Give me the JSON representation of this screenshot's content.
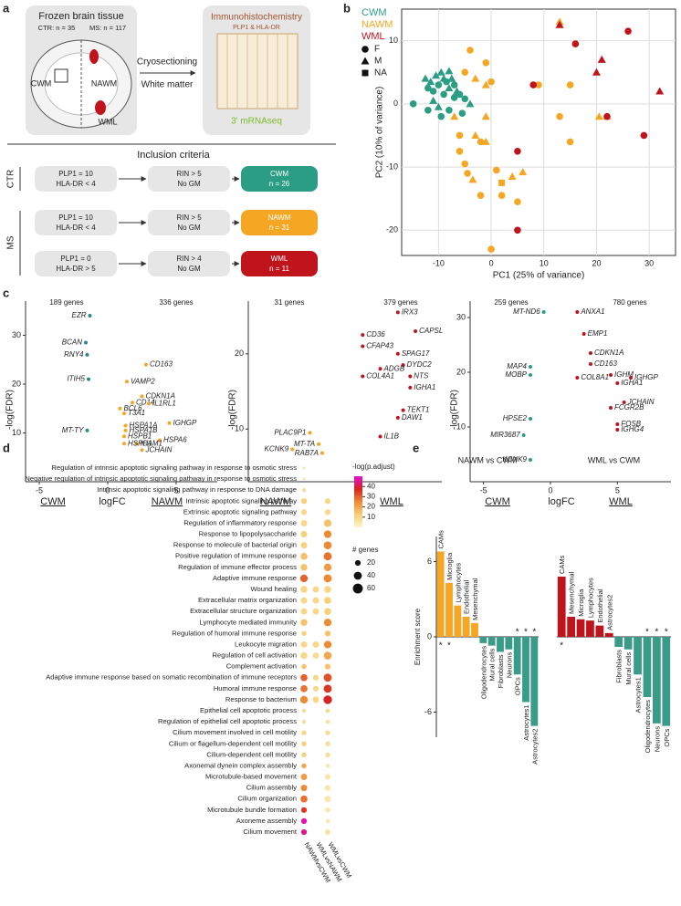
{
  "panel_labels": [
    "a",
    "b",
    "c",
    "d",
    "e"
  ],
  "diagram": {
    "tissue": {
      "title": "Frozen brain tissue",
      "counts": [
        "CTR: n = 35",
        "MS: n = 117"
      ],
      "regions": [
        "CWM",
        "NAWM",
        "WML"
      ]
    },
    "process": [
      "Cryosectioning",
      "White matter"
    ],
    "assay": {
      "title": "Immunohistochemistry",
      "subtitle": "PLP1 & HLA-DR",
      "method": "3' mRNAseq"
    },
    "criteria": {
      "title": "Inclusion criteria",
      "groups": [
        "CTR",
        "MS"
      ],
      "rows": [
        {
          "ihc": [
            "PLP1 = 10",
            "HLA-DR < 4"
          ],
          "rin": [
            "RIN > 5",
            "No GM"
          ],
          "result": [
            "CWM",
            "n = 26"
          ],
          "color": "#2a9d84"
        },
        {
          "ihc": [
            "PLP1 = 10",
            "HLA-DR < 4"
          ],
          "rin": [
            "RIN > 5",
            "No GM"
          ],
          "result": [
            "NAWM",
            "n = 31"
          ],
          "color": "#f5a623"
        },
        {
          "ihc": [
            "PLP1 = 0",
            "HLA-DR > 5"
          ],
          "rin": [
            "RIN > 4",
            "No GM"
          ],
          "result": [
            "WML",
            "n = 11"
          ],
          "color": "#c0141c"
        }
      ]
    }
  },
  "chart_data": [
    {
      "type": "scatter",
      "xlabel": "PC1 (25% of variance)",
      "ylabel": "PC2 (10% of variance)",
      "xlim": [
        -17,
        35
      ],
      "ylim": [
        -24,
        15
      ],
      "xticks": [
        -10,
        0,
        10,
        20,
        30
      ],
      "yticks": [
        -20,
        -10,
        0,
        10
      ],
      "grid": true,
      "shape_legend": [
        "F",
        "M",
        "NA"
      ],
      "series": [
        {
          "name": "CWM",
          "color": "#2a9d84",
          "x": [
            -14.8,
            -12.5,
            -12,
            -11.5,
            -11,
            -10.5,
            -10,
            -9.5,
            -9,
            -9,
            -8.5,
            -8,
            -8,
            -7.5,
            -7,
            -7,
            -6.5,
            -6,
            -5.5,
            -9.5,
            -10,
            -12,
            -11,
            -4,
            -8,
            -5
          ],
          "values": [
            0,
            4,
            2.5,
            3.5,
            2,
            4.5,
            3,
            5,
            4,
            1.5,
            3.5,
            5.2,
            2.5,
            4,
            3,
            1,
            2,
            1.5,
            -1.5,
            -2,
            -0.5,
            -1,
            0.5,
            0,
            -1,
            0.8
          ],
          "shapes": [
            0,
            1,
            0,
            1,
            0,
            1,
            0,
            1,
            1,
            0,
            0,
            1,
            1,
            1,
            0,
            0,
            1,
            0,
            0,
            0,
            1,
            0,
            1,
            1,
            0,
            0
          ]
        },
        {
          "name": "NAWM",
          "color": "#f5a623",
          "x": [
            13,
            -5,
            -4,
            -1,
            -3,
            -1,
            0,
            9,
            -7,
            -6,
            -6,
            -5,
            -3,
            -2,
            -3.5,
            -1,
            -1,
            -2,
            -4.5,
            0,
            1,
            2,
            2,
            4,
            5,
            6,
            15,
            15,
            13,
            20.5,
            22
          ],
          "values": [
            13,
            5,
            8.5,
            6.5,
            4,
            3,
            3.5,
            3,
            -2,
            -5,
            -7.5,
            -9.5,
            -5,
            -6,
            -12,
            -2,
            -6,
            -14.5,
            -11,
            -23,
            -10.5,
            -14.5,
            -12.5,
            -11.5,
            -15.5,
            -10.8,
            3,
            -6,
            -2,
            -2,
            -2
          ],
          "shapes": [
            1,
            0,
            0,
            0,
            1,
            1,
            0,
            0,
            1,
            0,
            0,
            0,
            1,
            0,
            1,
            1,
            1,
            0,
            0,
            0,
            0,
            0,
            2,
            1,
            0,
            1,
            0,
            0,
            0,
            1,
            1
          ]
        },
        {
          "name": "WML",
          "color": "#c0141c",
          "x": [
            13,
            16,
            26,
            21,
            20,
            32,
            8,
            22,
            29,
            5,
            5
          ],
          "values": [
            12.5,
            9.5,
            11.5,
            7,
            5,
            2,
            3,
            -2,
            -5,
            -7.5,
            -20
          ],
          "shapes": [
            1,
            0,
            0,
            1,
            1,
            1,
            0,
            0,
            0,
            0,
            0
          ]
        }
      ]
    },
    {
      "type": "volcano",
      "xlabel": "logFC",
      "ylabel": "-log(FDR)",
      "groups": [
        "CWM",
        "NAWM"
      ],
      "counts": [
        "189 genes",
        "336 genes"
      ],
      "xlim": [
        -6,
        8
      ],
      "ylim": [
        0,
        37
      ],
      "xticks": [
        -5,
        0,
        5
      ],
      "yticks": [
        10,
        20,
        30
      ],
      "series": [
        {
          "color": "#2a8a8c",
          "labels": [
            "EZR",
            "BCAN",
            "RNY4",
            "ITIH5",
            "MT-TY"
          ],
          "x": [
            -1.3,
            -1.6,
            -1.5,
            -1.4,
            -1.5
          ],
          "values": [
            34,
            28.5,
            26,
            21,
            10.5
          ]
        },
        {
          "color": "#f5a623",
          "labels": [
            "CD163",
            "VAMP2",
            "CDKN1A",
            "CD14",
            "IL1RL1",
            "BCL6",
            "T3A1",
            "IGHGP",
            "HSPA1A",
            "HSPA1B",
            "HSPA6",
            "HSPB1",
            "ICAM1",
            "HSPH1",
            "JCHAIN"
          ],
          "x": [
            2.8,
            1.4,
            2.5,
            1.8,
            3,
            0.9,
            1.2,
            4.5,
            1.3,
            1.3,
            3.8,
            1.2,
            2.1,
            1.2,
            2.5
          ],
          "values": [
            24,
            20.5,
            17.5,
            16.2,
            16,
            15,
            14,
            12,
            11.5,
            10.5,
            8.5,
            9.3,
            7.8,
            7.8,
            6.5
          ]
        }
      ]
    },
    {
      "type": "volcano",
      "ylabel": "-log(FDR)",
      "groups": [
        "NAWM",
        "WML"
      ],
      "counts": [
        "31 genes",
        "379 genes"
      ],
      "xlim": [
        -5,
        6
      ],
      "ylim": [
        3,
        27
      ],
      "yticks": [
        10,
        20
      ],
      "series": [
        {
          "color": "#f5a623",
          "labels": [
            "PLAC9P1",
            "MT-TA",
            "KCNK9",
            "RAB7A"
          ],
          "x": [
            -1.5,
            -1,
            -2.5,
            -0.8
          ],
          "values": [
            9.5,
            8,
            7.3,
            6.8
          ]
        },
        {
          "color": "#c0141c",
          "labels": [
            "IRX3",
            "CAPSL",
            "CD36",
            "CFAP43",
            "SPAG17",
            "DYDC2",
            "ADGB",
            "NTS",
            "COL4A1",
            "IGHA1",
            "TEKT1",
            "DAW1",
            "IL1B"
          ],
          "x": [
            3.5,
            4.5,
            1.5,
            1.5,
            3.5,
            3.8,
            2.5,
            4.2,
            1.5,
            4.2,
            3.8,
            3.5,
            2.5
          ],
          "values": [
            25.5,
            23,
            22.5,
            21,
            20,
            18.5,
            18,
            17,
            17,
            15.5,
            12.5,
            11.5,
            9
          ]
        }
      ]
    },
    {
      "type": "volcano",
      "xlabel": "logFC",
      "ylabel": "-log(FDR)",
      "groups": [
        "CWM",
        "WML"
      ],
      "counts": [
        "259 genes",
        "780 genes"
      ],
      "xlim": [
        -6,
        9
      ],
      "ylim": [
        0,
        33
      ],
      "xticks": [
        -5,
        0,
        5
      ],
      "yticks": [
        10,
        20,
        30
      ],
      "series": [
        {
          "color": "#2a9d84",
          "labels": [
            "MT-ND6",
            "MAP4",
            "MOBP",
            "HPSE2",
            "MIR3687",
            "KCNK9"
          ],
          "x": [
            -0.5,
            -1.5,
            -1.5,
            -1.5,
            -2,
            -1.5
          ],
          "values": [
            31,
            21,
            19.5,
            11.5,
            8.5,
            4
          ]
        },
        {
          "color": "#c0141c",
          "labels": [
            "ANXA1",
            "EMP1",
            "CDKN1A",
            "CD163",
            "COL8A1",
            "IGHM",
            "IGHGP",
            "IGHA1",
            "JCHAIN",
            "FCGR2B",
            "FOSB",
            "IGHG4"
          ],
          "x": [
            2,
            2.5,
            3,
            3,
            2,
            4.5,
            6,
            5,
            5.5,
            4.5,
            5,
            5
          ],
          "values": [
            31,
            27,
            23.5,
            21.5,
            19,
            19.5,
            19,
            18,
            14.5,
            13.5,
            10.5,
            9.5
          ]
        }
      ]
    },
    {
      "type": "dot",
      "color_title": "-log(p.adjust)",
      "clim": [
        0,
        50
      ],
      "cticks": [
        10,
        20,
        30,
        40
      ],
      "size_title": "# genes",
      "size_ticks": [
        20,
        40,
        60
      ],
      "categories": [
        "Regulation of intrinsic apoptotic signaling pathway in response to osmotic stress",
        "Negative regulation of intrinsic apoptotic signaling pathway in response to osmotic stress",
        "Intrinsic apoptotic signaling pathway in response to DNA damage",
        "Intrinsic apoptotic signaling pathway",
        "Extrinsic apoptotic signaling pathway",
        "Regulation of inflammatory response",
        "Response to lipopolysaccharide",
        "Response to molecule of bacterial origin",
        "Positive regulation of immune response",
        "Regulation of immune effector process",
        "Adaptive immune response",
        "Wound healing",
        "Extracellular matrix organization",
        "Extracellular structure organization",
        "Lymphocyte mediated immunity",
        "Regulation of humoral immune response",
        "Leukocyte migration",
        "Regulation of cell activation",
        "Complement activation",
        "Adaptive immune response based on somatic recombination of immune receptors",
        "Humoral immune response",
        "Response to bacterium",
        "Epithelial cell apoptotic process",
        "Regulation of epithelial cell apoptotic process",
        "Cilium movement involved in cell motility",
        "Cilium or flagellum-dependent cell motility",
        "Cilium-dependent cell motility",
        "Axonemal dynein complex assembly",
        "Microtubule-based movement",
        "Cilium assembly",
        "Cilium organization",
        "Microtubule bundle formation",
        "Axoneme assembly",
        "Cilium movement"
      ],
      "series": [
        {
          "name": "NAWMvsCWM",
          "values": [
            5,
            5,
            8,
            12,
            10,
            10,
            12,
            12,
            15,
            15,
            30,
            10,
            10,
            10,
            15,
            12,
            10,
            10,
            15,
            30,
            28,
            25,
            8,
            8,
            10,
            12,
            12,
            20,
            22,
            25,
            28,
            35,
            48,
            45
          ],
          "sizes": [
            5,
            5,
            10,
            20,
            20,
            25,
            25,
            25,
            30,
            28,
            35,
            30,
            25,
            25,
            28,
            15,
            25,
            28,
            15,
            30,
            30,
            35,
            10,
            10,
            15,
            15,
            15,
            15,
            25,
            25,
            30,
            20,
            20,
            20
          ]
        },
        {
          "name": "WMLvsNAWM",
          "values": [
            null,
            null,
            null,
            null,
            null,
            null,
            null,
            null,
            null,
            null,
            null,
            10,
            10,
            10,
            null,
            null,
            10,
            8,
            null,
            10,
            10,
            10,
            null,
            null,
            null,
            null,
            null,
            null,
            null,
            null,
            null,
            null,
            null,
            null
          ],
          "sizes": [
            null,
            null,
            null,
            null,
            null,
            null,
            null,
            null,
            null,
            null,
            null,
            25,
            25,
            25,
            null,
            null,
            25,
            25,
            null,
            20,
            20,
            25,
            null,
            null,
            null,
            null,
            null,
            null,
            null,
            null,
            null,
            null,
            null,
            null
          ]
        },
        {
          "name": "WMLvsCWM",
          "values": [
            null,
            null,
            null,
            10,
            10,
            15,
            25,
            25,
            28,
            22,
            25,
            10,
            12,
            12,
            25,
            15,
            25,
            20,
            15,
            32,
            35,
            38,
            10,
            8,
            8,
            8,
            8,
            5,
            5,
            5,
            5,
            5,
            5,
            8
          ],
          "sizes": [
            null,
            null,
            null,
            20,
            20,
            35,
            35,
            38,
            40,
            35,
            40,
            30,
            30,
            30,
            35,
            20,
            35,
            38,
            20,
            40,
            40,
            45,
            10,
            10,
            15,
            15,
            15,
            10,
            20,
            20,
            25,
            15,
            10,
            15
          ]
        }
      ]
    },
    {
      "type": "bar",
      "title": "NAWM vs CWM",
      "ylabel": "Enrichment score",
      "categories": [
        "CAMs",
        "Microglia",
        "Lymphocytes",
        "Endothelial",
        "Mesenchymal",
        "Oligodendrocytes",
        "Mural cells",
        "Fibroblasts",
        "Neurons",
        "OPCs",
        "Astrocytes1",
        "Astrocytes2"
      ],
      "values": [
        6.8,
        4.3,
        2.5,
        1.6,
        1.1,
        -0.5,
        -0.7,
        -1.2,
        -1,
        -3,
        -5.2,
        -7.1
      ],
      "annotations": [
        "*",
        "*",
        null,
        null,
        null,
        null,
        null,
        null,
        null,
        "*",
        "*",
        "*"
      ],
      "pos_color": "#f5a623",
      "neg_color": "#3a9c88",
      "ylim": [
        -8,
        8
      ],
      "yticks": [
        -6,
        0,
        6
      ]
    },
    {
      "type": "bar",
      "title": "WML vs CWM",
      "categories": [
        "CAMs",
        "Mesenchymal",
        "Microglia",
        "Lymphocytes",
        "Endothelial",
        "Astrocytes2",
        "Fibroblasts",
        "Mural cells",
        "Astrocytes1",
        "Oligodendrocytes",
        "Neurons",
        "OPCs"
      ],
      "values": [
        4.8,
        1.6,
        1.4,
        1.3,
        0.9,
        0.3,
        -0.8,
        -1,
        -3,
        -4.8,
        -6.9,
        -7.1
      ],
      "annotations": [
        "*",
        null,
        null,
        null,
        null,
        null,
        null,
        null,
        null,
        "*",
        "*",
        "*"
      ],
      "pos_color": "#c0141c",
      "neg_color": "#3a9c88",
      "ylim": [
        -8,
        8
      ]
    }
  ]
}
